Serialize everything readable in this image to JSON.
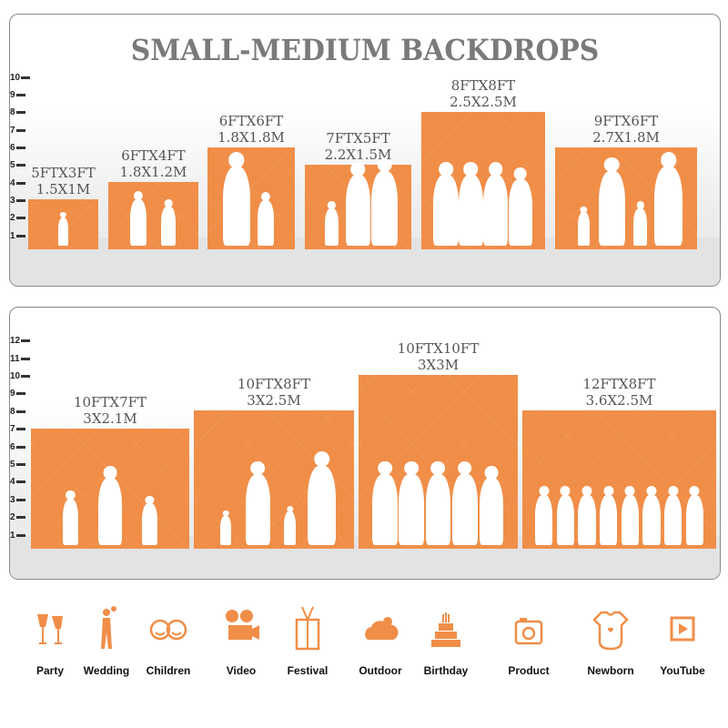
{
  "title": "SMALL-MEDIUM BACKDROPS",
  "accent_color": "#f08e48",
  "panel1": {
    "axis_ticks": [
      "10",
      "9",
      "8",
      "7",
      "6",
      "5",
      "4",
      "3",
      "2",
      "1"
    ],
    "sizes": [
      {
        "ft": "5FTX3FT",
        "m": "1.5X1M",
        "height_ft": 3
      },
      {
        "ft": "6FTX4FT",
        "m": "1.8X1.2M",
        "height_ft": 4
      },
      {
        "ft": "6FTX6FT",
        "m": "1.8X1.8M",
        "height_ft": 6
      },
      {
        "ft": "7FTX5FT",
        "m": "2.2X1.5M",
        "height_ft": 5
      },
      {
        "ft": "8FTX8FT",
        "m": "2.5X2.5M",
        "height_ft": 8
      },
      {
        "ft": "9FTX6FT",
        "m": "2.7X1.8M",
        "height_ft": 6
      }
    ]
  },
  "panel2": {
    "axis_ticks": [
      "12",
      "11",
      "10",
      "9",
      "8",
      "7",
      "6",
      "5",
      "4",
      "3",
      "2",
      "1"
    ],
    "sizes": [
      {
        "ft": "10FTX7FT",
        "m": "3X2.1M",
        "height_ft": 7
      },
      {
        "ft": "10FTX8FT",
        "m": "3X2.5M",
        "height_ft": 8
      },
      {
        "ft": "10FTX10FT",
        "m": "3X3M",
        "height_ft": 10
      },
      {
        "ft": "12FTX8FT",
        "m": "3.6X2.5M",
        "height_ft": 8
      }
    ]
  },
  "uses": [
    {
      "label": "Party",
      "icon": "champagne-glasses-icon"
    },
    {
      "label": "Wedding",
      "icon": "wedding-couple-icon"
    },
    {
      "label": "Children",
      "icon": "children-faces-icon"
    },
    {
      "label": "Video",
      "icon": "video-camera-icon"
    },
    {
      "label": "Festival",
      "icon": "gift-box-icon"
    },
    {
      "label": "Outdoor",
      "icon": "cloud-icon"
    },
    {
      "label": "Birthday",
      "icon": "birthday-cake-icon"
    },
    {
      "label": "Product",
      "icon": "camera-icon"
    },
    {
      "label": "Newborn",
      "icon": "baby-onesie-icon"
    },
    {
      "label": "YouTube",
      "icon": "play-button-icon"
    }
  ]
}
